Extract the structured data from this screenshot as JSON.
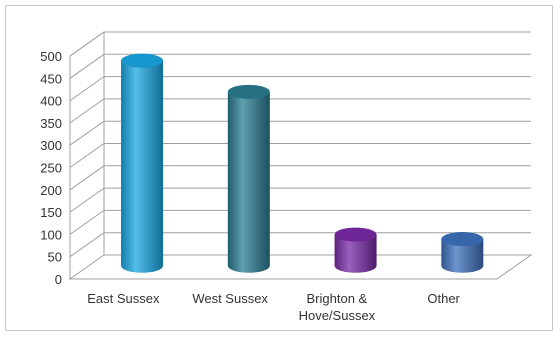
{
  "chart_data": {
    "type": "bar",
    "style": "3d-cylinder",
    "categories": [
      "East Sussex",
      "West Sussex",
      "Brighton & Hove/Sussex",
      "Other"
    ],
    "category_label_lines": [
      [
        "East Sussex"
      ],
      [
        "West Sussex"
      ],
      [
        "Brighton &",
        "Hove/Sussex"
      ],
      [
        "Other"
      ]
    ],
    "values": [
      460,
      390,
      70,
      60
    ],
    "colors": [
      "#1aa7e4",
      "#2a7d93",
      "#7a2aa8",
      "#3d72bd"
    ],
    "ylim": [
      0,
      500
    ],
    "yticks": [
      "0",
      "50",
      "100",
      "150",
      "200",
      "250",
      "300",
      "350",
      "400",
      "450",
      "500"
    ],
    "grid": true,
    "legend": "none",
    "title": "",
    "xlabel": "",
    "ylabel": ""
  }
}
